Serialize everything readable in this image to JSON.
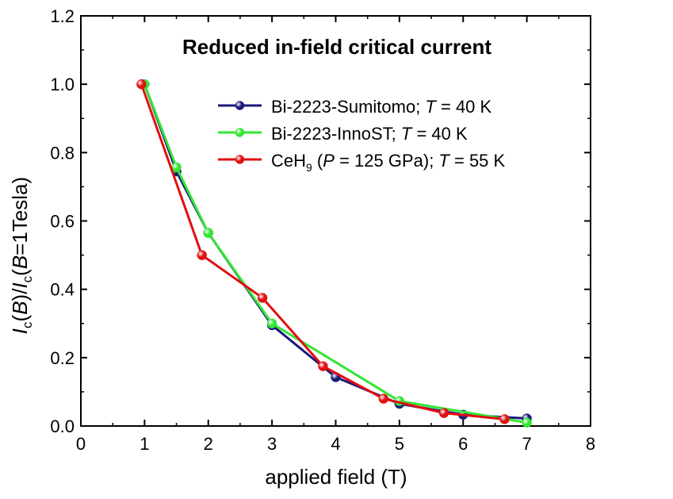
{
  "chart_data": {
    "type": "line",
    "title": "Reduced in-field critical current",
    "xlabel": "applied field (T)",
    "ylabel": {
      "i1": "I",
      "s1": "c",
      "m1": "(",
      "b1": "B",
      "m2": ")/",
      "i2": "I",
      "s2": "c",
      "m3": "(",
      "b2": "B",
      "m4": "=1Tesla)"
    },
    "xlim": [
      0,
      8
    ],
    "ylim": [
      0,
      1.2
    ],
    "xticks": [
      0,
      1,
      2,
      3,
      4,
      5,
      6,
      7,
      8
    ],
    "xtick_labels": [
      "0",
      "1",
      "2",
      "3",
      "4",
      "5",
      "6",
      "7",
      "8"
    ],
    "yticks": [
      0,
      0.2,
      0.4,
      0.6,
      0.8,
      1.0,
      1.2
    ],
    "ytick_labels": [
      "0.0",
      "0.2",
      "0.4",
      "0.6",
      "0.8",
      "1.0",
      "1.2"
    ],
    "grid": false,
    "legend_position": "top-right",
    "series": [
      {
        "color": "#1a1a7a",
        "legend": {
          "a": "Bi-2223-Sumitomo; ",
          "b": "T",
          "c": " = 40 K"
        },
        "x": [
          1,
          1.5,
          2,
          3,
          4,
          5,
          6,
          7
        ],
        "y": [
          1.0,
          0.745,
          0.565,
          0.295,
          0.143,
          0.065,
          0.033,
          0.022
        ]
      },
      {
        "color": "#33e633",
        "legend": {
          "a": "Bi-2223-InnoST; ",
          "b": "T",
          "c": " = 40 K"
        },
        "x": [
          1,
          1.5,
          2,
          3,
          5,
          7
        ],
        "y": [
          1.0,
          0.757,
          0.565,
          0.3,
          0.073,
          0.01
        ]
      },
      {
        "color": "#e01010",
        "legend": {
          "a": "CeH",
          "b": "9",
          "c": " (",
          "d": "P",
          "e": " = 125 GPa); ",
          "f": "T",
          "g": " = 55 K"
        },
        "x": [
          0.95,
          1.9,
          2.85,
          3.8,
          4.75,
          5.7,
          6.65
        ],
        "y": [
          1.0,
          0.5,
          0.375,
          0.175,
          0.08,
          0.038,
          0.02
        ]
      }
    ]
  }
}
